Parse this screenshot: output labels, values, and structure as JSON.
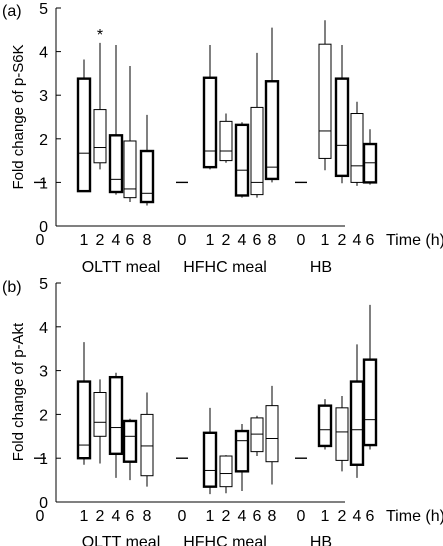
{
  "chart_data": [
    {
      "type": "box",
      "panel_label": "(a)",
      "ylabel": "Fold change of p-S6K",
      "xlabel": "Time (h)",
      "ylim": [
        0,
        5
      ],
      "yticks": [
        "0",
        "1",
        "2",
        "3",
        "4",
        "5"
      ],
      "significance_marker": "*",
      "groups": [
        {
          "label": "OLTT meal",
          "boxes": [
            {
              "time": "0",
              "baseline": 1
            },
            {
              "time": "1",
              "min": 0.78,
              "q1": 0.8,
              "median": 1.67,
              "q3": 3.38,
              "max": 3.82,
              "bold": true
            },
            {
              "time": "2",
              "min": 1.3,
              "q1": 1.45,
              "median": 1.8,
              "q3": 2.67,
              "max": 4.2,
              "bold": false,
              "significant": true
            },
            {
              "time": "4",
              "min": 0.72,
              "q1": 0.78,
              "median": 1.07,
              "q3": 2.08,
              "max": 4.15,
              "bold": true
            },
            {
              "time": "6",
              "min": 0.55,
              "q1": 0.65,
              "median": 0.85,
              "q3": 1.95,
              "max": 3.67,
              "bold": false
            },
            {
              "time": "8",
              "min": 0.47,
              "q1": 0.55,
              "median": 0.75,
              "q3": 1.72,
              "max": 2.55,
              "bold": true
            }
          ]
        },
        {
          "label": "HFHC meal",
          "boxes": [
            {
              "time": "0",
              "baseline": 1
            },
            {
              "time": "1",
              "min": 1.3,
              "q1": 1.35,
              "median": 1.72,
              "q3": 3.4,
              "max": 4.15,
              "bold": true
            },
            {
              "time": "2",
              "min": 1.45,
              "q1": 1.5,
              "median": 1.72,
              "q3": 2.4,
              "max": 2.58,
              "bold": false
            },
            {
              "time": "4",
              "min": 0.65,
              "q1": 0.7,
              "median": 1.28,
              "q3": 2.32,
              "max": 2.38,
              "bold": true
            },
            {
              "time": "6",
              "min": 0.65,
              "q1": 0.72,
              "median": 1.0,
              "q3": 2.72,
              "max": 3.97,
              "bold": false
            },
            {
              "time": "8",
              "min": 1.0,
              "q1": 1.08,
              "median": 1.35,
              "q3": 3.32,
              "max": 4.55,
              "bold": true
            }
          ]
        },
        {
          "label": "HB",
          "boxes": [
            {
              "time": "0",
              "baseline": 1
            },
            {
              "time": "1",
              "min": 1.28,
              "q1": 1.55,
              "median": 2.18,
              "q3": 4.17,
              "max": 4.72,
              "bold": false
            },
            {
              "time": "2",
              "min": 0.98,
              "q1": 1.15,
              "median": 1.85,
              "q3": 3.38,
              "max": 4.15,
              "bold": true
            },
            {
              "time": "4",
              "min": 0.92,
              "q1": 1.0,
              "median": 1.38,
              "q3": 2.58,
              "max": 2.85,
              "bold": false
            },
            {
              "time": "6",
              "min": 0.95,
              "q1": 1.0,
              "median": 1.45,
              "q3": 1.88,
              "max": 2.22,
              "bold": true
            }
          ]
        }
      ]
    },
    {
      "type": "box",
      "panel_label": "(b)",
      "ylabel": "Fold change of p-Akt",
      "xlabel": "Time (h)",
      "ylim": [
        0,
        5
      ],
      "yticks": [
        "0",
        "1",
        "2",
        "3",
        "4",
        "5"
      ],
      "groups": [
        {
          "label": "OLTT meal",
          "boxes": [
            {
              "time": "0",
              "baseline": 1
            },
            {
              "time": "1",
              "min": 0.85,
              "q1": 1.0,
              "median": 1.3,
              "q3": 2.75,
              "max": 3.65,
              "bold": true
            },
            {
              "time": "2",
              "min": 0.88,
              "q1": 1.5,
              "median": 1.82,
              "q3": 2.5,
              "max": 2.8,
              "bold": false
            },
            {
              "time": "4",
              "min": 0.55,
              "q1": 1.1,
              "median": 1.7,
              "q3": 2.85,
              "max": 2.95,
              "bold": true
            },
            {
              "time": "6",
              "min": 0.5,
              "q1": 0.92,
              "median": 1.5,
              "q3": 1.85,
              "max": 1.9,
              "bold": true
            },
            {
              "time": "8",
              "min": 0.35,
              "q1": 0.6,
              "median": 1.28,
              "q3": 2.0,
              "max": 2.5,
              "bold": false
            }
          ]
        },
        {
          "label": "HFHC meal",
          "boxes": [
            {
              "time": "0",
              "baseline": 1
            },
            {
              "time": "1",
              "min": 0.18,
              "q1": 0.35,
              "median": 0.72,
              "q3": 1.58,
              "max": 2.15,
              "bold": true
            },
            {
              "time": "2",
              "min": 0.2,
              "q1": 0.35,
              "median": 0.65,
              "q3": 1.05,
              "max": 1.07,
              "bold": false
            },
            {
              "time": "4",
              "min": 0.25,
              "q1": 0.7,
              "median": 1.4,
              "q3": 1.62,
              "max": 1.78,
              "bold": true
            },
            {
              "time": "6",
              "min": 1.05,
              "q1": 1.15,
              "median": 1.55,
              "q3": 1.92,
              "max": 1.97,
              "bold": false
            },
            {
              "time": "8",
              "min": 0.4,
              "q1": 0.92,
              "median": 1.45,
              "q3": 2.2,
              "max": 2.65,
              "bold": false
            }
          ]
        },
        {
          "label": "HB",
          "boxes": [
            {
              "time": "0",
              "baseline": 1
            },
            {
              "time": "1",
              "min": 1.2,
              "q1": 1.28,
              "median": 1.65,
              "q3": 2.2,
              "max": 2.35,
              "bold": true
            },
            {
              "time": "2",
              "min": 0.7,
              "q1": 0.95,
              "median": 1.6,
              "q3": 2.15,
              "max": 2.42,
              "bold": false
            },
            {
              "time": "4",
              "min": 0.55,
              "q1": 0.85,
              "median": 1.65,
              "q3": 2.75,
              "max": 3.6,
              "bold": true
            },
            {
              "time": "6",
              "min": 1.2,
              "q1": 1.3,
              "median": 1.88,
              "q3": 3.25,
              "max": 4.5,
              "bold": true
            }
          ]
        }
      ]
    }
  ]
}
